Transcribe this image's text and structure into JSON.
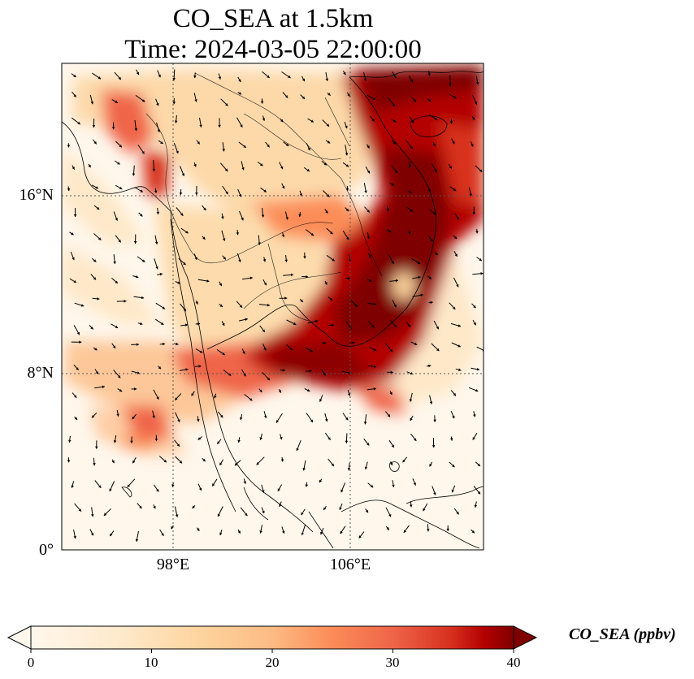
{
  "title": {
    "line1": "CO_SEA at 1.5km",
    "line2": "Time: 2024-03-05 22:00:00"
  },
  "map": {
    "lon_range": [
      94.9,
      109.1
    ],
    "lat_range": [
      0,
      16.5
    ],
    "lat_ticks": [
      {
        "value": 16,
        "label": "16°N"
      },
      {
        "value": 8,
        "label": "8°N"
      },
      {
        "value": 0,
        "label": "0°"
      }
    ],
    "lon_ticks": [
      {
        "value": 98,
        "label": "98°E"
      },
      {
        "value": 106,
        "label": "106°E"
      }
    ],
    "gridlines": true,
    "colormap": "OrRd"
  },
  "colorbar": {
    "label": "CO_SEA (ppbv)",
    "min": 0,
    "max": 40,
    "extend": "both",
    "ticks": [
      {
        "value": 0,
        "label": "0"
      },
      {
        "value": 10,
        "label": "10"
      },
      {
        "value": 20,
        "label": "20"
      },
      {
        "value": 30,
        "label": "30"
      },
      {
        "value": 40,
        "label": "40"
      }
    ]
  }
}
